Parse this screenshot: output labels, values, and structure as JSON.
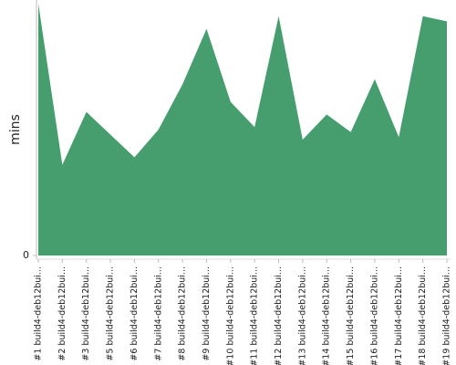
{
  "chart_data": {
    "type": "area",
    "y_label": "mins",
    "categories": [
      "#1 build4-deb12bui...",
      "#2 build4-deb12bui...",
      "#3 build4-deb12bui...",
      "#5 build4-deb12bui...",
      "#6 build4-deb12bui...",
      "#7 build4-deb12bui...",
      "#8 build4-deb12bui...",
      "#9 build4-deb12bui...",
      "#10 build4-deb12bui...",
      "#11 build4-deb12bui...",
      "#12 build4-deb12bui...",
      "#13 build4-deb12bui...",
      "#14 build4-deb12bui...",
      "#15 build4-deb12bui...",
      "#16 build4-deb12bui...",
      "#17 build4-deb12bui...",
      "#18 build4-deb12bui...",
      "#19 build4-deb12bui..."
    ],
    "values": [
      100,
      36,
      57,
      48,
      39,
      50,
      68,
      90,
      61,
      51,
      95,
      46,
      56,
      49,
      70,
      47,
      95,
      93
    ],
    "color": "#469e6f",
    "ylim": [
      0,
      100
    ],
    "yticks": [
      0
    ]
  }
}
